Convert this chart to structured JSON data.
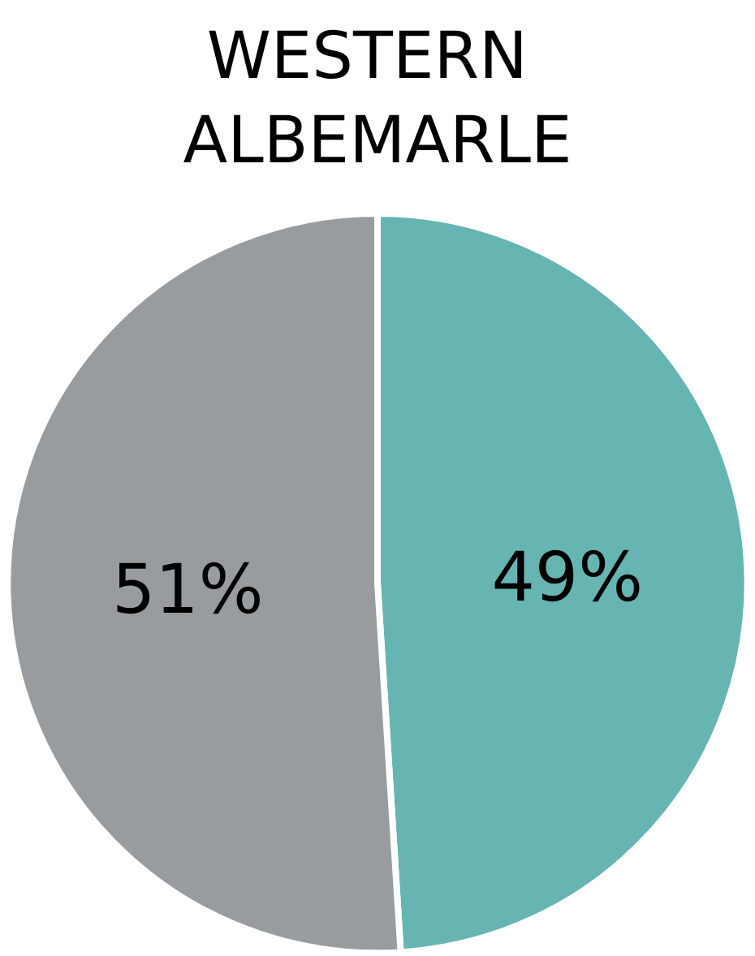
{
  "chart_data": {
    "type": "pie",
    "title": "WESTERN ALBEMARLE",
    "categories": [
      null,
      null
    ],
    "values": [
      49,
      51
    ],
    "colors": [
      "#66b5b2",
      "#999c9f"
    ],
    "value_labels": [
      "49%",
      "51%"
    ]
  }
}
